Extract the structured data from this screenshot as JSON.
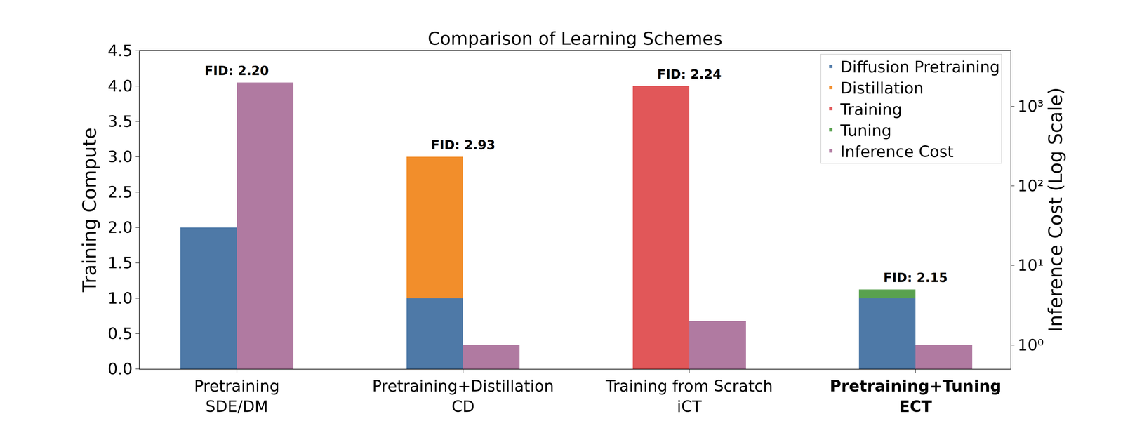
{
  "chart_data": {
    "type": "bar",
    "title": "Comparison of Learning Schemes",
    "categories": [
      "Pretraining\nSDE/DM",
      "Pretraining+Distillation\nCD",
      "Training from Scratch\niCT",
      "Pretraining+Tuning\nECT"
    ],
    "y_label": "Training Compute",
    "y2_label": "Inference Cost (Log Scale)",
    "series": [
      {
        "name": "Diffusion Pretraining",
        "color": "#4e79a7",
        "values": [
          2.0,
          1.0,
          null,
          1.0
        ]
      },
      {
        "name": "Distillation",
        "color": "#f28e2b",
        "values": [
          null,
          2.0,
          null,
          null
        ]
      },
      {
        "name": "Training",
        "color": "#e15759",
        "values": [
          null,
          null,
          4.0,
          null
        ]
      },
      {
        "name": "Tuning",
        "color": "#59a14f",
        "values": [
          null,
          null,
          null,
          0.125
        ]
      },
      {
        "name": "Inference Cost",
        "color": "#b07aa1",
        "values": [
          2000,
          1,
          2,
          1
        ],
        "axis": "y2"
      }
    ],
    "stacked": true,
    "ylim": [
      0,
      4.5
    ],
    "yticks": [
      {
        "value": 0,
        "label": "0.0"
      },
      0.5,
      {
        "value": 1,
        "label": "1.0"
      },
      1.5,
      {
        "value": 2,
        "label": "2.0"
      },
      2.5,
      {
        "value": 3,
        "label": "3.0"
      },
      3.5,
      {
        "value": 4,
        "label": "4.0"
      },
      4.5
    ],
    "y2lim": [
      0.5,
      5000
    ],
    "y2ticks": [
      {
        "value": 1,
        "label": "10⁰"
      },
      {
        "value": 10,
        "label": "10¹"
      },
      {
        "value": 100,
        "label": "10²"
      },
      {
        "value": 1000,
        "label": "10³"
      }
    ],
    "log": "y2",
    "grid": false,
    "legend": "upper right",
    "annotations": [
      "FID: 2.20",
      "FID: 2.93",
      "FID: 2.24",
      "FID: 2.15"
    ]
  }
}
